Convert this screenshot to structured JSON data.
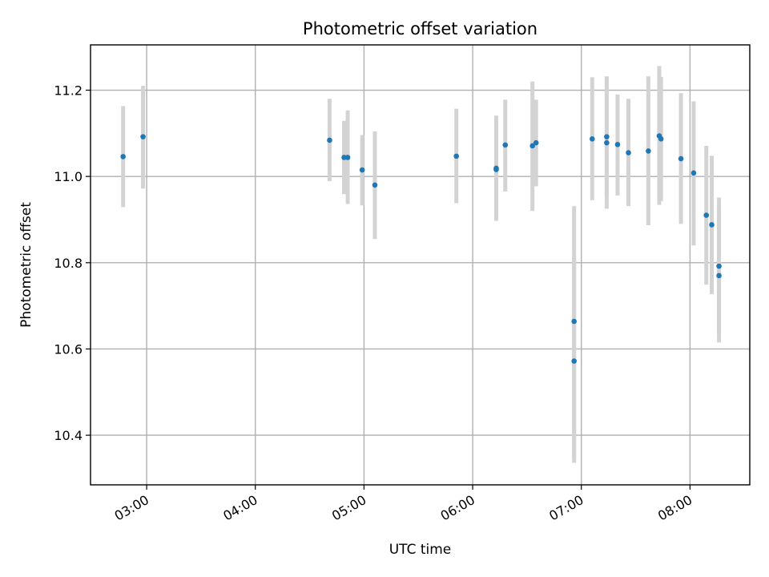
{
  "chart_data": {
    "type": "scatter",
    "title": "Photometric offset variation",
    "xlabel": "UTC time",
    "ylabel": "Photometric offset",
    "x_unit": "UTC time (HH:MM)",
    "xlim": [
      "02:29",
      "08:33"
    ],
    "ylim": [
      10.285,
      11.305
    ],
    "x_ticks": [
      "03:00",
      "04:00",
      "05:00",
      "06:00",
      "07:00",
      "08:00"
    ],
    "y_ticks": [
      10.4,
      10.6,
      10.8,
      11.0,
      11.2
    ],
    "y_tick_labels": [
      "10.4",
      "10.6",
      "10.8",
      "11.0",
      "11.2"
    ],
    "grid": true,
    "legend": false,
    "colors": {
      "point": "#1f77b4",
      "error_bar": "#d3d3d3",
      "grid": "#b0b0b0"
    },
    "series": [
      {
        "points": [
          {
            "x": "02:47",
            "y": 11.046,
            "err_low": 10.929,
            "err_high": 11.163
          },
          {
            "x": "02:58",
            "y": 11.092,
            "err_low": 10.972,
            "err_high": 11.21
          },
          {
            "x": "04:41",
            "y": 11.084,
            "err_low": 10.989,
            "err_high": 11.18
          },
          {
            "x": "04:49",
            "y": 11.044,
            "err_low": 10.959,
            "err_high": 11.129
          },
          {
            "x": "04:51",
            "y": 11.044,
            "err_low": 10.936,
            "err_high": 11.153
          },
          {
            "x": "04:59",
            "y": 11.015,
            "err_low": 10.933,
            "err_high": 11.096
          },
          {
            "x": "05:06",
            "y": 10.98,
            "err_low": 10.855,
            "err_high": 11.104
          },
          {
            "x": "05:51",
            "y": 11.047,
            "err_low": 10.938,
            "err_high": 11.157
          },
          {
            "x": "06:13",
            "y": 11.016,
            "err_low": 10.897,
            "err_high": 11.141
          },
          {
            "x": "06:13",
            "y": 11.019,
            "err_low": 10.908,
            "err_high": 11.131
          },
          {
            "x": "06:18",
            "y": 11.073,
            "err_low": 10.965,
            "err_high": 11.178
          },
          {
            "x": "06:33",
            "y": 11.071,
            "err_low": 10.92,
            "err_high": 11.22
          },
          {
            "x": "06:35",
            "y": 11.078,
            "err_low": 10.977,
            "err_high": 11.178
          },
          {
            "x": "06:56",
            "y": 10.664,
            "err_low": 10.336,
            "err_high": 10.931
          },
          {
            "x": "06:56",
            "y": 10.572,
            "err_low": 10.348,
            "err_high": 10.816
          },
          {
            "x": "07:06",
            "y": 11.087,
            "err_low": 10.945,
            "err_high": 11.23
          },
          {
            "x": "07:14",
            "y": 11.092,
            "err_low": 10.955,
            "err_high": 11.231
          },
          {
            "x": "07:14",
            "y": 11.078,
            "err_low": 10.925,
            "err_high": 11.232
          },
          {
            "x": "07:20",
            "y": 11.074,
            "err_low": 10.956,
            "err_high": 11.19
          },
          {
            "x": "07:26",
            "y": 11.055,
            "err_low": 10.931,
            "err_high": 11.18
          },
          {
            "x": "07:37",
            "y": 11.059,
            "err_low": 10.887,
            "err_high": 11.232
          },
          {
            "x": "07:43",
            "y": 11.094,
            "err_low": 10.934,
            "err_high": 11.256
          },
          {
            "x": "07:44",
            "y": 11.087,
            "err_low": 10.943,
            "err_high": 11.231
          },
          {
            "x": "07:55",
            "y": 11.041,
            "err_low": 10.89,
            "err_high": 11.193
          },
          {
            "x": "08:02",
            "y": 11.008,
            "err_low": 10.84,
            "err_high": 11.174
          },
          {
            "x": "08:09",
            "y": 10.91,
            "err_low": 10.749,
            "err_high": 11.071
          },
          {
            "x": "08:12",
            "y": 10.888,
            "err_low": 10.727,
            "err_high": 11.048
          },
          {
            "x": "08:16",
            "y": 10.792,
            "err_low": 10.635,
            "err_high": 10.951
          },
          {
            "x": "08:16",
            "y": 10.77,
            "err_low": 10.615,
            "err_high": 10.925
          }
        ]
      }
    ]
  }
}
